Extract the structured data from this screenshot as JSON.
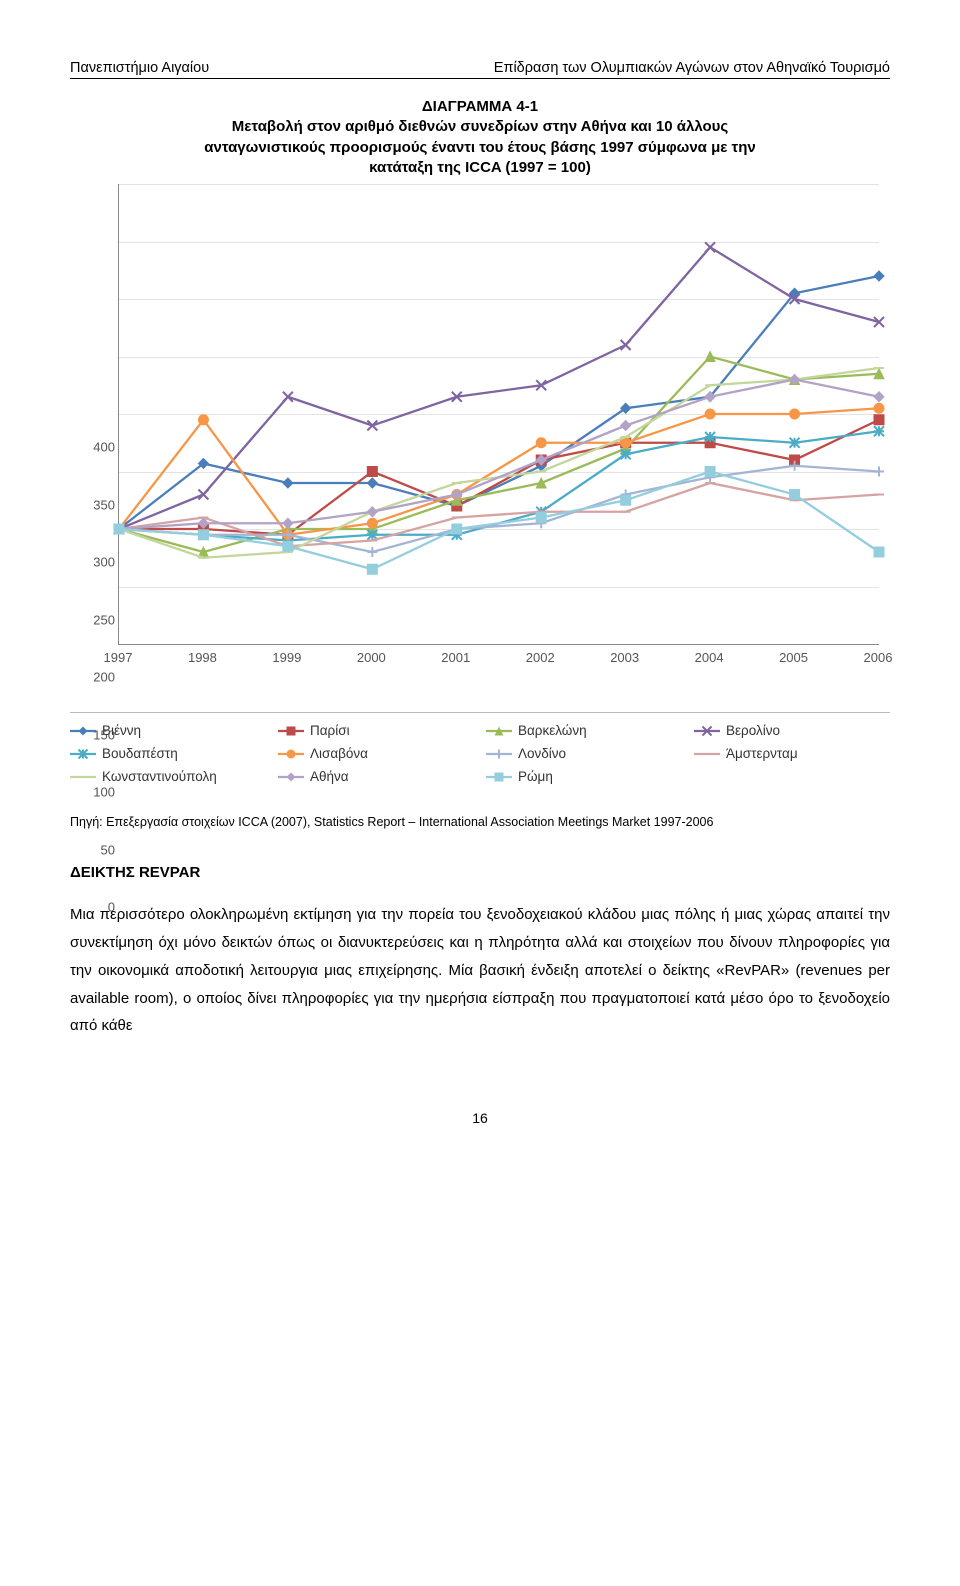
{
  "header": {
    "left": "Πανεπιστήμιο Αιγαίου",
    "right": "Επίδραση των Ολυμπιακών Αγώνων στον Αθηναϊκό Τουρισμό"
  },
  "chart": {
    "type": "line",
    "title_lines": [
      "ΔΙΑΓΡΑΜΜΑ 4-1",
      "Μεταβολή στον αριθμό διεθνών συνεδρίων στην Αθήνα και 10 άλλους",
      "ανταγωνιστικούς προορισμούς έναντι του έτους βάσης 1997 σύμφωνα με την",
      "κατάταξη της ICCA (1997 = 100)"
    ],
    "x_categories": [
      "1997",
      "1998",
      "1999",
      "2000",
      "2001",
      "2002",
      "2003",
      "2004",
      "2005",
      "2006"
    ],
    "ylim": [
      0,
      400
    ],
    "ytick_step": 50,
    "yticks": [
      0,
      50,
      100,
      150,
      200,
      250,
      300,
      350,
      400
    ],
    "background_color": "#ffffff",
    "grid_color": "#e3e3e3",
    "axis_color": "#888888",
    "label_fontsize": 13,
    "legend_fontsize": 13.5,
    "line_width": 2.3,
    "marker_size": 5,
    "series": [
      {
        "name": "Βιέννη",
        "color": "#4a7ebb",
        "marker": "diamond",
        "values": [
          100,
          157,
          140,
          140,
          120,
          155,
          205,
          215,
          305,
          320
        ]
      },
      {
        "name": "Παρίσι",
        "color": "#be4b48",
        "marker": "square",
        "values": [
          100,
          100,
          95,
          150,
          120,
          160,
          175,
          175,
          160,
          195
        ]
      },
      {
        "name": "Βαρκελώνη",
        "color": "#9bbb59",
        "marker": "triangle",
        "values": [
          100,
          80,
          100,
          100,
          125,
          140,
          170,
          250,
          230,
          235
        ]
      },
      {
        "name": "Βερολίνο",
        "color": "#8064a2",
        "marker": "x",
        "values": [
          100,
          130,
          215,
          190,
          215,
          225,
          260,
          345,
          300,
          280
        ]
      },
      {
        "name": "Βουδαπέστη",
        "color": "#4bacc6",
        "marker": "asterisk",
        "values": [
          100,
          95,
          90,
          95,
          95,
          115,
          165,
          180,
          175,
          185
        ]
      },
      {
        "name": "Λισαβόνα",
        "color": "#f79646",
        "marker": "circle",
        "values": [
          100,
          195,
          95,
          105,
          130,
          175,
          175,
          200,
          200,
          205
        ]
      },
      {
        "name": "Λονδίνο",
        "color": "#a3b5d5",
        "marker": "plus",
        "values": [
          100,
          95,
          95,
          80,
          100,
          105,
          130,
          145,
          155,
          150
        ]
      },
      {
        "name": "Άμστερνταμ",
        "color": "#d6a3a2",
        "marker": "dash",
        "values": [
          100,
          110,
          85,
          90,
          110,
          115,
          115,
          140,
          125,
          130
        ]
      },
      {
        "name": "Κωνσταντινούπολη",
        "color": "#c3d69b",
        "marker": "dash",
        "values": [
          100,
          75,
          80,
          115,
          140,
          150,
          180,
          225,
          230,
          240
        ]
      },
      {
        "name": "Αθήνα",
        "color": "#b3a2c7",
        "marker": "diamond",
        "values": [
          100,
          105,
          105,
          115,
          130,
          160,
          190,
          215,
          230,
          215
        ]
      },
      {
        "name": "Ρώμη",
        "color": "#94cddd",
        "marker": "square",
        "values": [
          100,
          95,
          85,
          65,
          100,
          110,
          125,
          150,
          130,
          80
        ]
      }
    ],
    "legend_order": [
      "Βιέννη",
      "Παρίσι",
      "Βαρκελώνη",
      "Βερολίνο",
      "Βουδαπέστη",
      "Λισαβόνα",
      "Λονδίνο",
      "Άμστερνταμ",
      "Κωνσταντινούπολη",
      "Αθήνα",
      "Ρώμη"
    ]
  },
  "source_text": "Πηγή: Επεξεργασία στοιχείων ICCA (2007), Statistics Report – International Association Meetings Market 1997-2006",
  "section_heading": "ΔΕΙΚΤΗΣ REVPAR",
  "body_text": "Μια περισσότερο ολοκληρωμένη εκτίμηση για την πορεία του ξενοδοχειακού κλάδου μιας πόλης ή μιας χώρας απαιτεί την συνεκτίμηση όχι μόνο δεικτών όπως οι διανυκτερεύσεις και η πληρότητα αλλά και στοιχείων που δίνουν πληροφορίες για την οικονομικά αποδοτική λειτουργια μιας επιχείρησης. Μία βασική ένδειξη αποτελεί ο δείκτης «RevPAR» (revenues per available room), ο οποίος δίνει πληροφορίες για την ημερήσια είσπραξη που πραγματοποιεί κατά μέσο όρο το ξενοδοχείο από κάθε",
  "page_number": "16"
}
